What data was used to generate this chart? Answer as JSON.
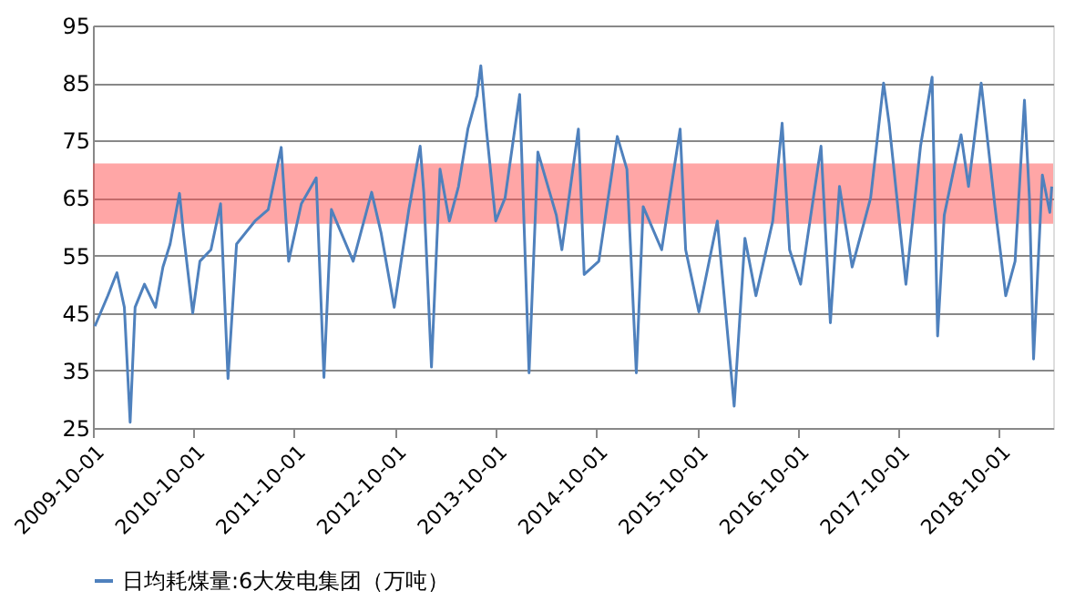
{
  "chart_data": {
    "type": "line",
    "legend": "bottom",
    "grid": "y",
    "marker": "none",
    "line_style": "solid",
    "xlim": [
      "2009-10-01",
      "2019-04-15"
    ],
    "xticks": [
      "2009-10-01",
      "2010-10-01",
      "2011-10-01",
      "2012-10-01",
      "2013-10-01",
      "2014-10-01",
      "2015-10-01",
      "2016-10-01",
      "2017-10-01",
      "2018-10-01"
    ],
    "ylim": [
      25,
      95
    ],
    "yticks": [
      25,
      35,
      45,
      55,
      65,
      75,
      85,
      95
    ],
    "bands": [
      {
        "axis": "y",
        "from": 60.5,
        "to": 71,
        "color": "#ff4d4d"
      }
    ],
    "x": [
      "2009-10-08",
      "2009-11-24",
      "2009-12-27",
      "2010-01-23",
      "2010-02-13",
      "2010-03-03",
      "2010-04-06",
      "2010-05-16",
      "2010-06-12",
      "2010-07-08",
      "2010-08-11",
      "2010-08-25",
      "2010-09-28",
      "2010-10-24",
      "2010-12-03",
      "2011-01-07",
      "2011-02-03",
      "2011-03-06",
      "2011-05-12",
      "2011-06-29",
      "2011-08-15",
      "2011-09-11",
      "2011-10-27",
      "2011-12-20",
      "2012-01-17",
      "2012-02-13",
      "2012-05-02",
      "2012-07-08",
      "2012-08-11",
      "2012-09-28",
      "2012-11-20",
      "2012-12-31",
      "2013-01-13",
      "2013-02-10",
      "2013-03-13",
      "2013-04-16",
      "2013-05-19",
      "2013-06-22",
      "2013-07-25",
      "2013-08-08",
      "2013-08-28",
      "2013-10-01",
      "2013-11-04",
      "2013-12-27",
      "2014-01-30",
      "2014-03-03",
      "2014-05-09",
      "2014-05-29",
      "2014-07-28",
      "2014-08-18",
      "2014-10-10",
      "2014-12-16",
      "2015-01-20",
      "2015-02-23",
      "2015-03-20",
      "2015-05-26",
      "2015-08-01",
      "2015-08-21",
      "2015-10-08",
      "2015-12-14",
      "2016-02-13",
      "2016-03-23",
      "2016-05-02",
      "2016-07-02",
      "2016-08-05",
      "2016-09-01",
      "2016-10-11",
      "2016-12-24",
      "2017-01-27",
      "2017-03-01",
      "2017-04-16",
      "2017-06-22",
      "2017-08-08",
      "2017-08-28",
      "2017-10-28",
      "2017-12-20",
      "2018-01-31",
      "2018-02-20",
      "2018-03-16",
      "2018-05-16",
      "2018-06-12",
      "2018-07-28",
      "2018-09-16",
      "2018-10-25",
      "2018-11-28",
      "2019-01-01",
      "2019-01-19",
      "2019-02-03",
      "2019-03-07",
      "2019-04-03",
      "2019-04-10"
    ],
    "series": [
      {
        "name": "日均耗煤量:6大发电集团（万吨）",
        "color": "#4f81bd",
        "values": [
          42.7,
          48,
          52,
          46,
          26,
          46,
          50,
          46,
          53,
          57,
          65.8,
          59,
          45,
          54,
          56,
          64,
          33.6,
          57,
          61,
          63,
          73.8,
          54,
          64,
          68.5,
          33.8,
          63,
          54,
          66,
          59,
          46,
          63,
          74,
          66,
          35.6,
          70,
          61,
          67,
          77,
          82.8,
          88,
          77,
          61,
          65,
          83,
          34.6,
          73,
          62,
          56,
          77,
          51.7,
          54,
          75.7,
          70,
          34.6,
          63.5,
          56,
          77,
          56,
          45.2,
          61,
          28.8,
          58,
          48,
          61,
          78,
          56,
          50,
          74,
          43.3,
          67,
          53,
          65,
          85,
          78,
          50,
          74,
          86,
          41,
          62,
          76,
          67,
          85,
          63.5,
          48,
          54,
          82,
          65,
          37,
          69,
          62.5,
          67
        ]
      }
    ]
  }
}
